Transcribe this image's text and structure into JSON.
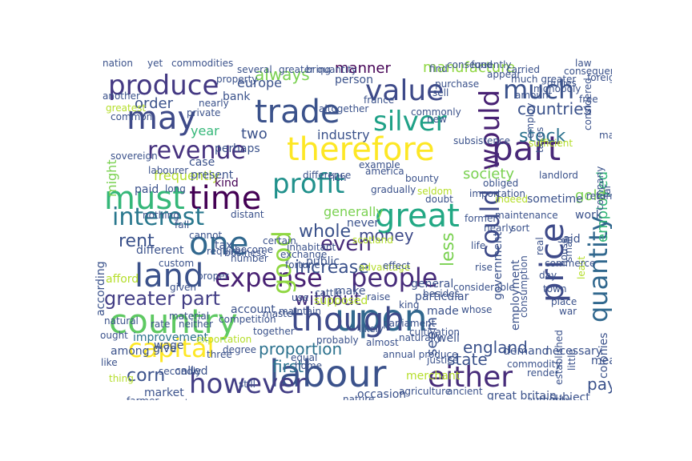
{
  "words": [
    {
      "text": "labour",
      "color": "#3b528b"
    },
    {
      "text": "upon",
      "color": "#31688e"
    },
    {
      "text": "country",
      "color": "#5ec962"
    },
    {
      "text": "though",
      "color": "#3e4a89"
    },
    {
      "text": "however",
      "color": "#433e85"
    },
    {
      "text": "either",
      "color": "#472c7a"
    },
    {
      "text": "land",
      "color": "#3b528b"
    },
    {
      "text": "expense",
      "color": "#482173"
    },
    {
      "text": "people",
      "color": "#472c7a"
    },
    {
      "text": "price",
      "color": "#3e4a89"
    },
    {
      "text": "time",
      "color": "#440154"
    },
    {
      "text": "must",
      "color": "#35b779"
    },
    {
      "text": "one",
      "color": "#31688e"
    },
    {
      "text": "interest",
      "color": "#2a788e"
    },
    {
      "text": "great",
      "color": "#22a884"
    },
    {
      "text": "profit",
      "color": "#21918c"
    },
    {
      "text": "good",
      "color": "#90d743"
    },
    {
      "text": "could",
      "color": "#3e4a89"
    },
    {
      "text": "would",
      "color": "#482173"
    },
    {
      "text": "quantity",
      "color": "#31688e"
    },
    {
      "text": "therefore",
      "color": "#fde725"
    },
    {
      "text": "part",
      "color": "#482878"
    },
    {
      "text": "revenue",
      "color": "#46327e"
    },
    {
      "text": "trade",
      "color": "#3b528b"
    },
    {
      "text": "silver",
      "color": "#1fa187"
    },
    {
      "text": "may",
      "color": "#3e4a89"
    },
    {
      "text": "value",
      "color": "#3e4a89"
    },
    {
      "text": "produce",
      "color": "#443983"
    },
    {
      "text": "much",
      "color": "#3b528b"
    },
    {
      "text": "capital",
      "color": "#fde725"
    },
    {
      "text": "greater part",
      "color": "#433e85"
    },
    {
      "text": "without",
      "color": "#46327e"
    },
    {
      "text": "proportion",
      "color": "#2c728e"
    },
    {
      "text": "increase",
      "color": "#3b528b"
    },
    {
      "text": "even",
      "color": "#472c7a"
    },
    {
      "text": "whole",
      "color": "#3b528b"
    },
    {
      "text": "money",
      "color": "#3e4a89"
    },
    {
      "text": "rent",
      "color": "#3b528b"
    },
    {
      "text": "corn",
      "color": "#3b528b"
    },
    {
      "text": "first",
      "color": "#2c728e"
    },
    {
      "text": "seem",
      "color": "#3b528b"
    },
    {
      "text": "state",
      "color": "#3b528b"
    },
    {
      "text": "england",
      "color": "#3b528b"
    },
    {
      "text": "less",
      "color": "#7ad151"
    },
    {
      "text": "employed",
      "color": "#35b779"
    },
    {
      "text": "pay",
      "color": "#3b528b"
    },
    {
      "text": "stock",
      "color": "#2c728e"
    },
    {
      "text": "countries",
      "color": "#3b528b"
    },
    {
      "text": "always",
      "color": "#7ad151"
    },
    {
      "text": "manner",
      "color": "#440154"
    },
    {
      "text": "manufacture",
      "color": "#90d743"
    },
    {
      "text": "europe",
      "color": "#3b528b"
    },
    {
      "text": "order",
      "color": "#3b528b"
    },
    {
      "text": "two",
      "color": "#3b528b"
    },
    {
      "text": "year",
      "color": "#35b779"
    },
    {
      "text": "might",
      "color": "#7ad151"
    },
    {
      "text": "gold",
      "color": "#7ad151"
    },
    {
      "text": "society",
      "color": "#7ad151"
    },
    {
      "text": "industry",
      "color": "#3b528b"
    },
    {
      "text": "frequently",
      "color": "#b5de2b"
    },
    {
      "text": "generally",
      "color": "#7ad151"
    },
    {
      "text": "different",
      "color": "#3b528b"
    },
    {
      "text": "kind",
      "color": "#440154"
    },
    {
      "text": "present",
      "color": "#3b528b"
    },
    {
      "text": "case",
      "color": "#3b528b"
    },
    {
      "text": "perhaps",
      "color": "#3b528b"
    },
    {
      "text": "bank",
      "color": "#3b528b"
    },
    {
      "text": "person",
      "color": "#3b528b"
    },
    {
      "text": "paid",
      "color": "#3b528b"
    },
    {
      "text": "public",
      "color": "#3b528b"
    },
    {
      "text": "particular",
      "color": "#3b528b"
    },
    {
      "text": "government",
      "color": "#3b528b"
    },
    {
      "text": "sometime",
      "color": "#3b528b"
    },
    {
      "text": "work",
      "color": "#3b528b"
    },
    {
      "text": "said",
      "color": "#3b528b"
    },
    {
      "text": "never",
      "color": "#3b528b"
    },
    {
      "text": "tax",
      "color": "#3b528b"
    },
    {
      "text": "afford",
      "color": "#b5de2b"
    },
    {
      "text": "according",
      "color": "#3b528b"
    },
    {
      "text": "improvement",
      "color": "#2c728e"
    },
    {
      "text": "account",
      "color": "#3b528b"
    },
    {
      "text": "supposed",
      "color": "#b5de2b"
    },
    {
      "text": "make",
      "color": "#3b528b"
    },
    {
      "text": "general",
      "color": "#3b528b"
    },
    {
      "text": "made",
      "color": "#3b528b"
    },
    {
      "text": "employment",
      "color": "#3b528b"
    },
    {
      "text": "demand",
      "color": "#3b528b"
    },
    {
      "text": "necessary",
      "color": "#3b528b"
    },
    {
      "text": "mean",
      "color": "#3b528b"
    },
    {
      "text": "colonies",
      "color": "#3b528b"
    },
    {
      "text": "give",
      "color": "#3b528b"
    },
    {
      "text": "wage",
      "color": "#3b528b"
    },
    {
      "text": "among",
      "color": "#3b528b"
    },
    {
      "text": "called",
      "color": "#3b528b"
    },
    {
      "text": "market",
      "color": "#3b528b"
    },
    {
      "text": "occasion",
      "color": "#3b528b"
    },
    {
      "text": "merchant",
      "color": "#b5de2b"
    },
    {
      "text": "great britain",
      "color": "#3b528b"
    },
    {
      "text": "subject",
      "color": "#3b528b"
    },
    {
      "text": "nation",
      "color": "#3b528b"
    },
    {
      "text": "yet",
      "color": "#3b528b"
    },
    {
      "text": "commodities",
      "color": "#3b528b"
    },
    {
      "text": "law",
      "color": "#3b528b"
    },
    {
      "text": "farmer",
      "color": "#3b528b"
    },
    {
      "text": "like",
      "color": "#3b528b"
    },
    {
      "text": "well",
      "color": "#3b528b"
    },
    {
      "text": "three",
      "color": "#3b528b"
    },
    {
      "text": "equal",
      "color": "#3b528b"
    },
    {
      "text": "still",
      "color": "#3b528b"
    },
    {
      "text": "number",
      "color": "#3b528b"
    },
    {
      "text": "exchange",
      "color": "#3b528b"
    },
    {
      "text": "town",
      "color": "#3b528b"
    },
    {
      "text": "place",
      "color": "#3b528b"
    },
    {
      "text": "war",
      "color": "#3b528b"
    },
    {
      "text": "consumption",
      "color": "#3b528b"
    },
    {
      "text": "raise",
      "color": "#3b528b"
    },
    {
      "text": "advantage",
      "color": "#b5de2b"
    },
    {
      "text": "rise",
      "color": "#3b528b"
    },
    {
      "text": "considerable",
      "color": "#3b528b"
    },
    {
      "text": "effect",
      "color": "#3b528b"
    },
    {
      "text": "scotland",
      "color": "#b5de2b"
    },
    {
      "text": "landlord",
      "color": "#3b528b"
    },
    {
      "text": "taxes",
      "color": "#3b528b"
    },
    {
      "text": "sufficient",
      "color": "#b5de2b"
    },
    {
      "text": "employ",
      "color": "#3b528b"
    },
    {
      "text": "find",
      "color": "#3b528b"
    },
    {
      "text": "purchase",
      "color": "#3b528b"
    },
    {
      "text": "sell",
      "color": "#3b528b"
    },
    {
      "text": "america",
      "color": "#3b528b"
    },
    {
      "text": "commonly",
      "color": "#3b528b"
    },
    {
      "text": "new",
      "color": "#3b528b"
    },
    {
      "text": "altogether",
      "color": "#3b528b"
    },
    {
      "text": "france",
      "color": "#3b528b"
    },
    {
      "text": "sovereign",
      "color": "#3b528b"
    },
    {
      "text": "another",
      "color": "#3b528b"
    },
    {
      "text": "greatest",
      "color": "#b5de2b"
    },
    {
      "text": "common",
      "color": "#3b528b"
    },
    {
      "text": "certain",
      "color": "#3b528b"
    },
    {
      "text": "maintain",
      "color": "#3b528b"
    },
    {
      "text": "inhabitant",
      "color": "#3b528b"
    },
    {
      "text": "use",
      "color": "#3b528b"
    },
    {
      "text": "fall",
      "color": "#3b528b"
    },
    {
      "text": "cannot",
      "color": "#3b528b"
    },
    {
      "text": "require",
      "color": "#3b528b"
    },
    {
      "text": "become",
      "color": "#3b528b"
    },
    {
      "text": "business",
      "color": "#3b528b"
    },
    {
      "text": "natural",
      "color": "#3b528b"
    },
    {
      "text": "ought",
      "color": "#3b528b"
    },
    {
      "text": "exportation",
      "color": "#b5de2b"
    },
    {
      "text": "master",
      "color": "#3b528b"
    },
    {
      "text": "probably",
      "color": "#3b528b"
    },
    {
      "text": "almost",
      "color": "#3b528b"
    },
    {
      "text": "annual produce",
      "color": "#3b528b"
    },
    {
      "text": "naturally",
      "color": "#3b528b"
    },
    {
      "text": "justice",
      "color": "#3b528b"
    },
    {
      "text": "cultivation",
      "color": "#3b528b"
    },
    {
      "text": "established",
      "color": "#3b528b"
    },
    {
      "text": "little",
      "color": "#3b528b"
    },
    {
      "text": "least",
      "color": "#b5de2b"
    },
    {
      "text": "far",
      "color": "#3b528b"
    },
    {
      "text": "small",
      "color": "#3b528b"
    },
    {
      "text": "house",
      "color": "#3b528b"
    },
    {
      "text": "real",
      "color": "#3b528b"
    },
    {
      "text": "sort",
      "color": "#3b528b"
    },
    {
      "text": "nearly",
      "color": "#3b528b"
    },
    {
      "text": "life",
      "color": "#3b528b"
    },
    {
      "text": "obliged",
      "color": "#3b528b"
    },
    {
      "text": "indeed",
      "color": "#b5de2b"
    },
    {
      "text": "importation",
      "color": "#3b528b"
    },
    {
      "text": "amount",
      "color": "#3b528b"
    },
    {
      "text": "monopoly",
      "color": "#3b528b"
    },
    {
      "text": "duties",
      "color": "#3b528b"
    },
    {
      "text": "consequence",
      "color": "#3b528b"
    },
    {
      "text": "subsistence",
      "color": "#3b528b"
    },
    {
      "text": "example",
      "color": "#3b528b"
    },
    {
      "text": "rich",
      "color": "#3b528b"
    },
    {
      "text": "gradually",
      "color": "#3b528b"
    },
    {
      "text": "bounty",
      "color": "#3b528b"
    },
    {
      "text": "seldom",
      "color": "#b5de2b"
    },
    {
      "text": "doubt",
      "color": "#3b528b"
    },
    {
      "text": "difference",
      "color": "#3b528b"
    },
    {
      "text": "fortune",
      "color": "#3b528b"
    },
    {
      "text": "cattle",
      "color": "#3b528b"
    },
    {
      "text": "likely",
      "color": "#3b528b"
    },
    {
      "text": "parliament",
      "color": "#3b528b"
    },
    {
      "text": "king",
      "color": "#3b528b"
    },
    {
      "text": "degree",
      "color": "#3b528b"
    },
    {
      "text": "home",
      "color": "#3b528b"
    },
    {
      "text": "thing",
      "color": "#b5de2b"
    },
    {
      "text": "province",
      "color": "#3b528b"
    },
    {
      "text": "manufacturer",
      "color": "#3b528b"
    },
    {
      "text": "accordingly",
      "color": "#3b528b"
    },
    {
      "text": "regard",
      "color": "#3b528b"
    },
    {
      "text": "nature",
      "color": "#3b528b"
    },
    {
      "text": "agriculture",
      "color": "#3b528b"
    },
    {
      "text": "ancient",
      "color": "#3b528b"
    },
    {
      "text": "authority",
      "color": "#3b528b"
    },
    {
      "text": "day",
      "color": "#3b528b"
    },
    {
      "text": "commerce",
      "color": "#3b528b"
    },
    {
      "text": "return",
      "color": "#3b528b"
    },
    {
      "text": "company",
      "color": "#3b528b"
    },
    {
      "text": "considered",
      "color": "#3b528b"
    },
    {
      "text": "man",
      "color": "#3b528b"
    },
    {
      "text": "free",
      "color": "#3b528b"
    },
    {
      "text": "foreign",
      "color": "#3b528b"
    },
    {
      "text": "whose",
      "color": "#3b528b"
    },
    {
      "text": "besides",
      "color": "#3b528b"
    },
    {
      "text": "commodity",
      "color": "#3b528b"
    },
    {
      "text": "render",
      "color": "#3b528b"
    },
    {
      "text": "maintenance",
      "color": "#3b528b"
    },
    {
      "text": "former",
      "color": "#3b528b"
    },
    {
      "text": "distant",
      "color": "#3b528b"
    },
    {
      "text": "proper",
      "color": "#3b528b"
    },
    {
      "text": "competition",
      "color": "#3b528b"
    },
    {
      "text": "together",
      "color": "#3b528b"
    },
    {
      "text": "neither",
      "color": "#3b528b"
    },
    {
      "text": "secondly",
      "color": "#3b528b"
    },
    {
      "text": "rate",
      "color": "#3b528b"
    },
    {
      "text": "material",
      "color": "#3b528b"
    },
    {
      "text": "given",
      "color": "#3b528b"
    },
    {
      "text": "custom",
      "color": "#3b528b"
    },
    {
      "text": "nothing",
      "color": "#3b528b"
    },
    {
      "text": "long",
      "color": "#3b528b"
    },
    {
      "text": "labourer",
      "color": "#3b528b"
    },
    {
      "text": "private",
      "color": "#3b528b"
    },
    {
      "text": "nearly",
      "color": "#3b528b"
    },
    {
      "text": "property",
      "color": "#3b528b"
    },
    {
      "text": "several",
      "color": "#3b528b"
    },
    {
      "text": "greater quantity",
      "color": "#3b528b"
    },
    {
      "text": "bring",
      "color": "#3b528b"
    },
    {
      "text": "consequently",
      "color": "#3b528b"
    },
    {
      "text": "fund",
      "color": "#3b528b"
    },
    {
      "text": "appear",
      "color": "#3b528b"
    },
    {
      "text": "carried",
      "color": "#3b528b"
    },
    {
      "text": "much greater",
      "color": "#3b528b"
    }
  ]
}
